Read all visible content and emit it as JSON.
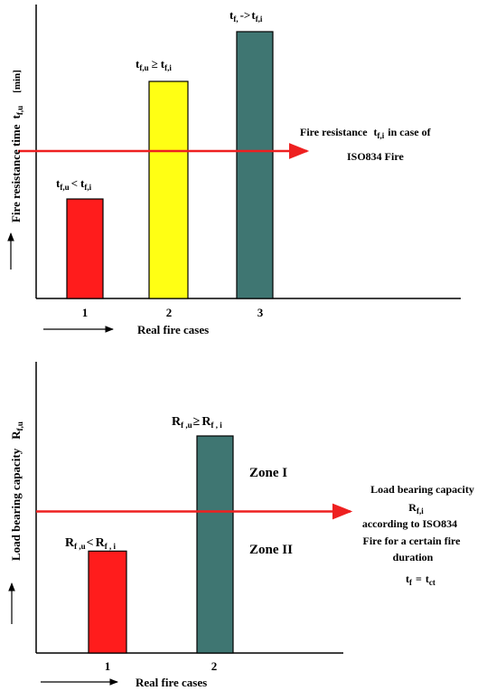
{
  "chart_data": [
    {
      "type": "bar",
      "categories": [
        "1",
        "2",
        "3"
      ],
      "values": [
        110,
        240,
        295
      ],
      "colors": [
        "#ff1c1c",
        "#ffff14",
        "#3f7672"
      ],
      "reference_line": {
        "value": 163,
        "color": "#ee2020"
      },
      "ylabel": {
        "main": "Fire resistance time",
        "var": "t",
        "sub": "f,u",
        "unit": "[min]"
      },
      "xlabel": "Real fire cases",
      "bar_labels": [
        {
          "main": "t",
          "sub": "f,u",
          "op": "<",
          "main2": "t",
          "sub2": "f,i"
        },
        {
          "main": "t",
          "sub": "f,u",
          "op": "≥",
          "main2": "t",
          "sub2": "f,i"
        },
        {
          "main": "t",
          "sub": "f,",
          "op": "->",
          "main2": "t",
          "sub2": "f,i"
        }
      ],
      "reference_label": {
        "l1_pre": "Fire resistance",
        "l1_var": "t",
        "l1_sub": "f,i",
        "l1_post": "in case of",
        "l2": "ISO834 Fire"
      },
      "ylim": [
        0,
        300
      ],
      "grid": false,
      "legend": "none"
    },
    {
      "type": "bar",
      "categories": [
        "1",
        "2"
      ],
      "values": [
        108,
        230
      ],
      "colors": [
        "#ff1c1c",
        "#3f7672"
      ],
      "reference_line": {
        "value": 150,
        "color": "#ee2020"
      },
      "ylabel": {
        "main": "Load bearing capacity",
        "var": "R",
        "sub": "f,u"
      },
      "xlabel": "Real fire cases",
      "bar_labels": [
        {
          "main": "R",
          "sub": "f ,u",
          "op": "<",
          "main2": "R",
          "sub2": "f , i"
        },
        {
          "main": "R",
          "sub": "f ,u",
          "op": "≥",
          "main2": "R",
          "sub2": "f , i"
        }
      ],
      "zones": [
        "Zone I",
        "Zone II"
      ],
      "reference_label": {
        "l1": "Load bearing capacity",
        "l2_var": "R",
        "l2_sub": "f,i",
        "l3": "according to ISO834",
        "l4": "Fire for a certain fire",
        "l5": "duration",
        "l6_var": "t",
        "l6_sub": "f",
        "l6_eq": "=",
        "l6_var2": "t",
        "l6_sub2": "ct"
      },
      "ylim": [
        0,
        300
      ],
      "grid": false,
      "legend": "none"
    }
  ]
}
